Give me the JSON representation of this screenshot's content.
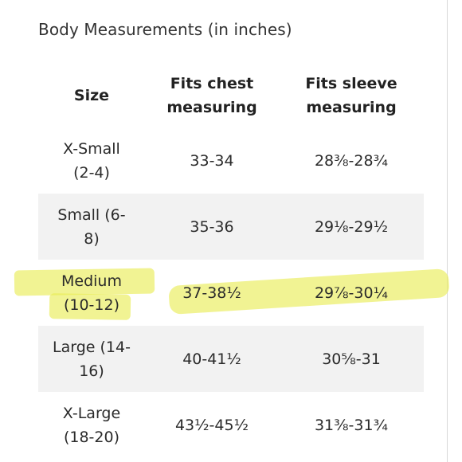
{
  "caption": "Body Measurements (in inches)",
  "table": {
    "headers": {
      "size": "Size",
      "chest": [
        "Fits chest",
        "measuring"
      ],
      "sleeve": [
        "Fits sleeve",
        "measuring"
      ]
    },
    "rows": [
      {
        "size": [
          "X-Small",
          "(2-4)"
        ],
        "chest": "33-34",
        "sleeve": "28⅜-28¾",
        "shaded": false,
        "highlighted": false
      },
      {
        "size": [
          "Small (6-",
          "8)"
        ],
        "chest": "35-36",
        "sleeve": "29⅛-29½",
        "shaded": true,
        "highlighted": false
      },
      {
        "size": [
          "Medium",
          "(10-12)"
        ],
        "chest": "37-38½",
        "sleeve": "29⅞-30¼",
        "shaded": false,
        "highlighted": true
      },
      {
        "size": [
          "Large (14-",
          "16)"
        ],
        "chest": "40-41½",
        "sleeve": "30⅝-31",
        "shaded": true,
        "highlighted": false
      },
      {
        "size": [
          "X-Large",
          "(18-20)"
        ],
        "chest": "43½-45½",
        "sleeve": "31⅜-31¾",
        "shaded": false,
        "highlighted": false
      }
    ]
  },
  "colors": {
    "highlight": "#e8ec50",
    "shaded_row": "#f2f2f2"
  }
}
